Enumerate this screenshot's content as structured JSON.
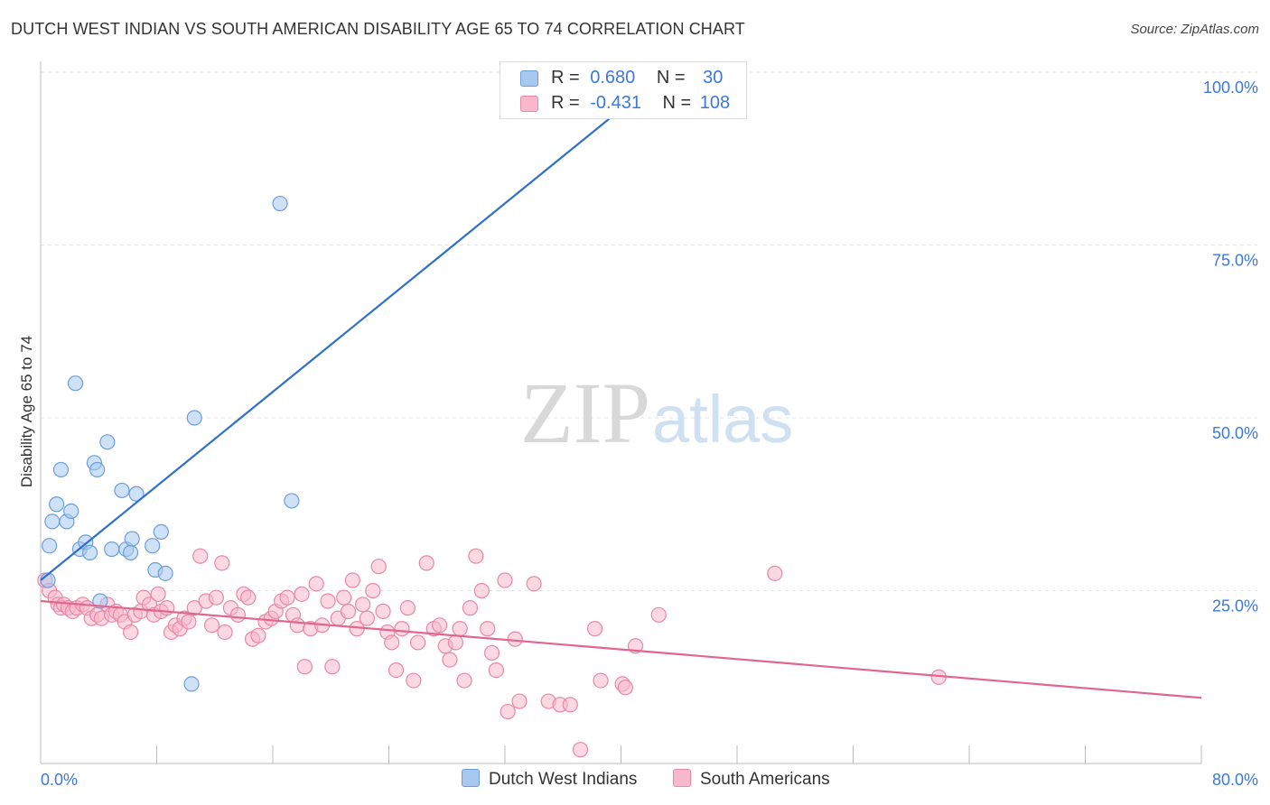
{
  "title": "DUTCH WEST INDIAN VS SOUTH AMERICAN DISABILITY AGE 65 TO 74 CORRELATION CHART",
  "source": "Source: ZipAtlas.com",
  "watermark": {
    "zip": "ZIP",
    "atlas": "atlas"
  },
  "legend_stats": [
    {
      "r_label": "R =",
      "r_value": "0.680",
      "n_label": "N =",
      "n_value": "30",
      "color": "#a8c8f0"
    },
    {
      "r_label": "R =",
      "r_value": "-0.431",
      "n_label": "N =",
      "n_value": "108",
      "color": "#f7b8cb"
    }
  ],
  "chart_data": {
    "type": "scatter",
    "ylabel": "Disability Age 65 to 74",
    "xlim": [
      0,
      80
    ],
    "ylim": [
      0,
      100
    ],
    "x_tick_labels": [
      "0.0%",
      "80.0%"
    ],
    "y_ticks": [
      25,
      50,
      75,
      100
    ],
    "y_tick_labels": [
      "25.0%",
      "50.0%",
      "75.0%",
      "100.0%"
    ],
    "grid": true,
    "legend_position": "bottom",
    "series": [
      {
        "name": "Dutch West Indians",
        "color": "#a8c8f0",
        "edge": "#6a9ed8",
        "line_color": "#2f6fcc",
        "trend": {
          "x": [
            0,
            40.5
          ],
          "y": [
            26.5,
            95.5
          ]
        },
        "points": [
          [
            0.5,
            26.5
          ],
          [
            0.6,
            31.5
          ],
          [
            0.8,
            35
          ],
          [
            1.1,
            37.5
          ],
          [
            1.4,
            42.5
          ],
          [
            1.8,
            35
          ],
          [
            2.1,
            36.5
          ],
          [
            2.4,
            55
          ],
          [
            2.7,
            31
          ],
          [
            3.1,
            32
          ],
          [
            3.4,
            30.5
          ],
          [
            3.7,
            43.5
          ],
          [
            3.9,
            42.5
          ],
          [
            4.1,
            23.5
          ],
          [
            4.6,
            46.5
          ],
          [
            4.9,
            31
          ],
          [
            5.6,
            39.5
          ],
          [
            5.9,
            31
          ],
          [
            6.2,
            30.5
          ],
          [
            6.3,
            32.5
          ],
          [
            6.6,
            39
          ],
          [
            7.7,
            31.5
          ],
          [
            7.9,
            28
          ],
          [
            8.3,
            33.5
          ],
          [
            8.6,
            27.5
          ],
          [
            10.4,
            11.5
          ],
          [
            10.6,
            50
          ],
          [
            16.5,
            81
          ],
          [
            17.3,
            38
          ],
          [
            35.8,
            100
          ]
        ]
      },
      {
        "name": "South Americans",
        "color": "#f7b8cb",
        "edge": "#e888a6",
        "line_color": "#e06690",
        "trend": {
          "x": [
            0,
            80
          ],
          "y": [
            23.5,
            9.5
          ]
        },
        "points": [
          [
            0.3,
            26.5
          ],
          [
            0.6,
            25
          ],
          [
            1,
            24
          ],
          [
            1.2,
            23
          ],
          [
            1.4,
            22.5
          ],
          [
            1.6,
            23
          ],
          [
            1.9,
            22.5
          ],
          [
            2.2,
            22
          ],
          [
            2.5,
            22.5
          ],
          [
            2.9,
            23
          ],
          [
            3.2,
            22.5
          ],
          [
            3.5,
            21
          ],
          [
            3.9,
            21.5
          ],
          [
            4.2,
            21
          ],
          [
            4.6,
            23
          ],
          [
            4.9,
            21.5
          ],
          [
            5.2,
            22
          ],
          [
            5.5,
            21.5
          ],
          [
            5.8,
            20.5
          ],
          [
            6.2,
            19
          ],
          [
            6.5,
            21.5
          ],
          [
            6.9,
            22
          ],
          [
            7.1,
            24
          ],
          [
            7.5,
            23
          ],
          [
            7.8,
            21.5
          ],
          [
            8.1,
            24.5
          ],
          [
            8.3,
            22
          ],
          [
            8.7,
            22.5
          ],
          [
            9,
            19
          ],
          [
            9.3,
            20
          ],
          [
            9.6,
            19.5
          ],
          [
            9.9,
            21
          ],
          [
            10.2,
            20.5
          ],
          [
            10.6,
            22.5
          ],
          [
            11,
            30
          ],
          [
            11.4,
            23.5
          ],
          [
            11.8,
            20
          ],
          [
            12.1,
            24
          ],
          [
            12.5,
            29
          ],
          [
            12.7,
            19
          ],
          [
            13.1,
            22.5
          ],
          [
            13.6,
            21.5
          ],
          [
            14,
            24.5
          ],
          [
            14.3,
            24
          ],
          [
            14.6,
            18
          ],
          [
            15,
            18.5
          ],
          [
            15.5,
            20.5
          ],
          [
            15.9,
            21
          ],
          [
            16.2,
            22
          ],
          [
            16.6,
            23.5
          ],
          [
            17,
            24
          ],
          [
            17.4,
            21.5
          ],
          [
            17.7,
            20
          ],
          [
            18,
            24.5
          ],
          [
            18.2,
            14
          ],
          [
            18.6,
            19.5
          ],
          [
            19,
            26
          ],
          [
            19.4,
            20
          ],
          [
            19.8,
            23.5
          ],
          [
            20.1,
            14
          ],
          [
            20.5,
            21
          ],
          [
            20.9,
            24
          ],
          [
            21.2,
            22
          ],
          [
            21.5,
            26.5
          ],
          [
            21.8,
            19.5
          ],
          [
            22.2,
            23
          ],
          [
            22.5,
            21
          ],
          [
            22.9,
            25
          ],
          [
            23.3,
            28.5
          ],
          [
            23.6,
            22
          ],
          [
            23.9,
            19
          ],
          [
            24.2,
            17.5
          ],
          [
            24.5,
            13.5
          ],
          [
            24.9,
            19.5
          ],
          [
            25.3,
            22.5
          ],
          [
            25.7,
            12
          ],
          [
            26,
            17.5
          ],
          [
            26.6,
            29
          ],
          [
            27.1,
            19.5
          ],
          [
            27.5,
            20
          ],
          [
            27.9,
            17
          ],
          [
            28.2,
            15
          ],
          [
            28.6,
            17.5
          ],
          [
            28.9,
            19.5
          ],
          [
            29.2,
            12
          ],
          [
            29.6,
            22.5
          ],
          [
            30,
            30
          ],
          [
            30.4,
            25
          ],
          [
            30.8,
            19.5
          ],
          [
            31.1,
            16
          ],
          [
            31.4,
            13.5
          ],
          [
            32,
            26.5
          ],
          [
            32.2,
            7.5
          ],
          [
            32.7,
            18
          ],
          [
            33,
            9
          ],
          [
            34,
            26
          ],
          [
            35,
            9
          ],
          [
            35.8,
            8.5
          ],
          [
            36.5,
            8.5
          ],
          [
            37.2,
            2
          ],
          [
            38.2,
            19.5
          ],
          [
            38.6,
            12
          ],
          [
            40.1,
            11.5
          ],
          [
            40.3,
            11
          ],
          [
            41,
            17
          ],
          [
            42.6,
            21.5
          ],
          [
            50.6,
            27.5
          ],
          [
            61.9,
            12.5
          ]
        ]
      }
    ]
  }
}
